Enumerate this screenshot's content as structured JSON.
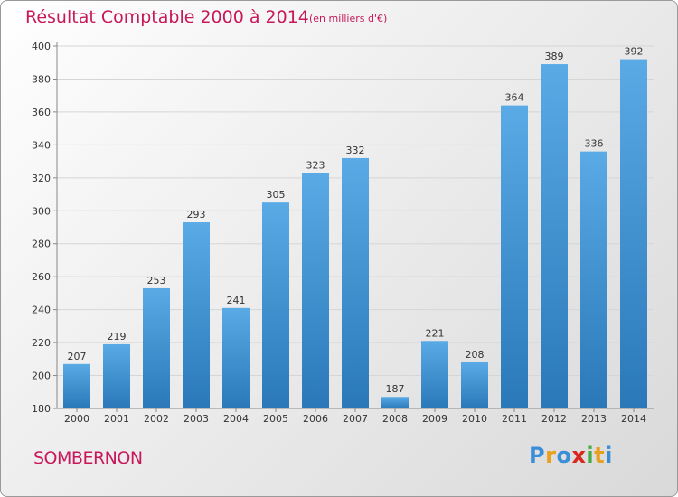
{
  "header": {
    "title": "Résultat Comptable 2000 à 2014",
    "subtitle": "(en milliers d'€)"
  },
  "footer": {
    "commune": "SOMBERNON",
    "brand_letters": [
      {
        "ch": "P",
        "color": "#3a8ed8"
      },
      {
        "ch": "r",
        "color": "#e8a020"
      },
      {
        "ch": "o",
        "color": "#3a8ed8"
      },
      {
        "ch": "x",
        "color": "#d8281e"
      },
      {
        "ch": "i",
        "color": "#44aa44"
      },
      {
        "ch": "t",
        "color": "#e8a020"
      },
      {
        "ch": "i",
        "color": "#3a8ed8"
      }
    ]
  },
  "chart_data": {
    "type": "bar",
    "categories": [
      "2000",
      "2001",
      "2002",
      "2003",
      "2004",
      "2005",
      "2006",
      "2007",
      "2008",
      "2009",
      "2010",
      "2011",
      "2012",
      "2013",
      "2014"
    ],
    "values": [
      207,
      219,
      253,
      293,
      241,
      305,
      323,
      332,
      187,
      221,
      208,
      364,
      389,
      336,
      392
    ],
    "ylim": [
      180,
      400
    ],
    "yticks": [
      180,
      200,
      220,
      240,
      260,
      280,
      300,
      320,
      340,
      360,
      380,
      400
    ],
    "grid": true,
    "data_labels": true,
    "colors": {
      "bar_light": "#5aaae6",
      "bar_dark": "#2a78b8",
      "grid": "#d6d6d6"
    }
  }
}
